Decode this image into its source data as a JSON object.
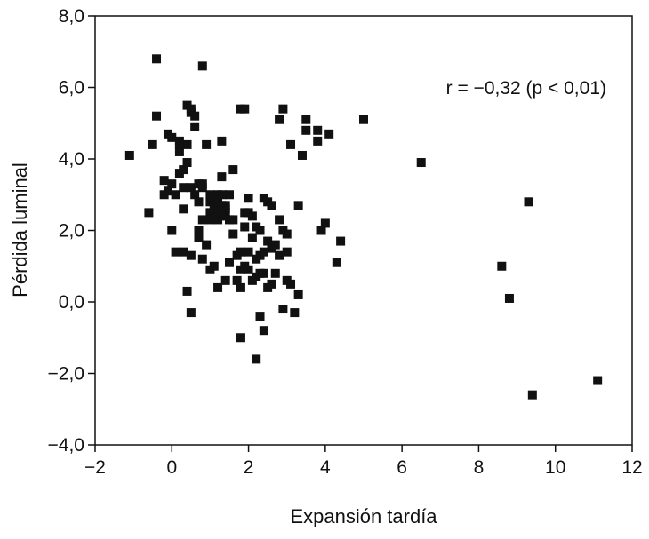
{
  "chart_data": {
    "type": "scatter",
    "title": "",
    "xlabel": "Expansión tardía",
    "ylabel": "Pérdida luminal",
    "xlim": [
      -2,
      12
    ],
    "ylim": [
      -4,
      8
    ],
    "xticks": [
      -2,
      0,
      2,
      4,
      6,
      8,
      10,
      12
    ],
    "yticks": [
      -4,
      -2,
      0,
      2,
      4,
      6,
      8
    ],
    "xtick_labels": [
      "−2",
      "0",
      "2",
      "4",
      "6",
      "8",
      "10",
      "12"
    ],
    "ytick_labels": [
      "−4,0",
      "−2,0",
      "0,0",
      "2,0",
      "4,0",
      "6,0",
      "8,0"
    ],
    "annotation": "r = −0,32 (p < 0,01)",
    "grid": false,
    "legend": "none",
    "marker": "square",
    "marker_color": "#111111",
    "x": [
      -1.1,
      -0.5,
      -0.4,
      -0.6,
      -0.2,
      -0.2,
      -0.1,
      -0.1,
      0.0,
      0.0,
      0.0,
      0.1,
      0.1,
      0.2,
      0.2,
      0.2,
      0.3,
      0.3,
      0.3,
      0.3,
      0.4,
      0.4,
      0.4,
      0.4,
      0.5,
      0.5,
      0.5,
      0.5,
      0.6,
      0.6,
      0.6,
      0.7,
      0.7,
      0.7,
      0.7,
      0.8,
      0.8,
      0.8,
      0.8,
      0.9,
      0.9,
      1.0,
      1.0,
      1.0,
      1.0,
      1.0,
      1.1,
      1.1,
      1.1,
      1.2,
      1.2,
      1.2,
      1.2,
      1.2,
      1.3,
      1.3,
      1.3,
      1.3,
      1.3,
      1.4,
      1.4,
      1.4,
      1.4,
      1.5,
      1.5,
      1.5,
      1.6,
      1.6,
      1.6,
      1.7,
      1.7,
      1.8,
      1.8,
      1.8,
      1.8,
      1.9,
      1.9,
      1.9,
      2.0,
      2.0,
      2.0,
      2.0,
      2.1,
      2.1,
      2.1,
      2.2,
      2.2,
      2.2,
      2.3,
      2.3,
      2.3,
      2.4,
      2.4,
      2.4,
      2.5,
      2.5,
      2.5,
      2.6,
      2.6,
      2.6,
      2.7,
      2.7,
      2.8,
      2.8,
      2.8,
      2.9,
      2.9,
      3.0,
      3.0,
      3.0,
      3.1,
      3.1,
      3.2,
      3.3,
      3.3,
      3.4,
      3.5,
      3.5,
      3.8,
      3.8,
      3.9,
      4.0,
      4.1,
      4.3,
      4.4,
      5.0,
      6.5,
      8.6,
      8.8,
      9.3,
      9.4,
      11.1,
      0.8,
      1.9,
      2.9,
      0.5,
      -0.4,
      0.2,
      2.2,
      2.4,
      1.8,
      1.2,
      2.3
    ],
    "y": [
      4.1,
      4.4,
      6.8,
      2.5,
      3.0,
      3.4,
      3.1,
      4.7,
      2.0,
      3.3,
      4.6,
      1.4,
      3.0,
      3.6,
      4.2,
      4.5,
      2.6,
      1.4,
      3.2,
      3.7,
      0.3,
      4.4,
      3.9,
      5.5,
      5.3,
      1.3,
      3.2,
      5.4,
      4.9,
      5.2,
      3.0,
      3.3,
      2.0,
      1.8,
      2.8,
      2.3,
      3.2,
      1.2,
      3.3,
      1.6,
      4.4,
      2.3,
      0.9,
      2.8,
      3.0,
      2.5,
      2.5,
      1.0,
      2.7,
      3.0,
      2.9,
      2.3,
      0.4,
      2.5,
      2.4,
      3.0,
      3.5,
      4.5,
      2.7,
      2.5,
      0.6,
      2.7,
      2.6,
      1.1,
      2.3,
      3.0,
      2.3,
      3.7,
      1.9,
      0.6,
      1.3,
      0.4,
      0.9,
      1.4,
      5.4,
      2.5,
      1.0,
      2.1,
      2.9,
      1.4,
      2.5,
      0.9,
      0.6,
      2.4,
      1.8,
      1.2,
      0.7,
      2.1,
      0.8,
      2.0,
      -0.4,
      0.8,
      2.9,
      1.4,
      1.7,
      2.8,
      0.4,
      1.5,
      0.5,
      2.7,
      1.6,
      0.8,
      1.3,
      2.3,
      5.1,
      2.0,
      -0.2,
      0.6,
      1.9,
      1.4,
      0.5,
      4.4,
      -0.3,
      2.7,
      0.2,
      4.1,
      5.1,
      4.8,
      4.5,
      4.8,
      2.0,
      2.2,
      4.7,
      1.1,
      1.7,
      5.1,
      3.9,
      1.0,
      0.1,
      2.8,
      -2.6,
      -2.2,
      6.6,
      5.4,
      5.4,
      -0.3,
      5.2,
      4.4,
      -1.6,
      -0.8,
      -1.0,
      2.7,
      1.3
    ]
  }
}
